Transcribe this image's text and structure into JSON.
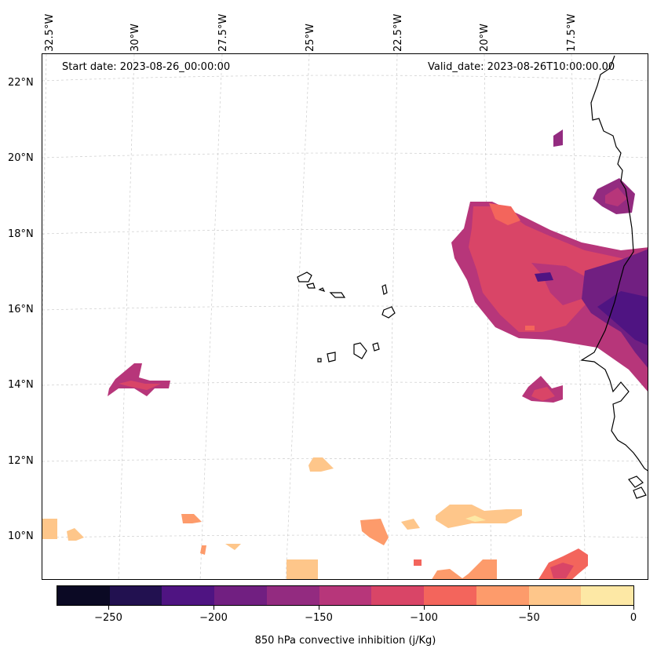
{
  "map": {
    "start_date": "Start date: 2023-08-26_00:00:00",
    "valid_date": "Valid_date: 2023-08-26T10:00:00.00",
    "lon_labels": [
      "32.5°W",
      "30°W",
      "27.5°W",
      "25°W",
      "22.5°W",
      "20°W",
      "17.5°W"
    ],
    "lat_labels": [
      "22°N",
      "20°N",
      "18°N",
      "16°N",
      "14°N",
      "12°N",
      "10°N"
    ],
    "field_color_scale": [
      "#0b0924",
      "#221150",
      "#4f1482",
      "#711f81",
      "#932b80",
      "#b7367a",
      "#d94567",
      "#f3655c",
      "#fd9b6b",
      "#fec68a",
      "#fde8a5"
    ]
  },
  "colorbar": {
    "title": "850 hPa convective inhibition (j/Kg)",
    "tick_labels": [
      "−250",
      "−200",
      "−150",
      "−100",
      "−50",
      "0"
    ],
    "levels": [
      -275,
      -250,
      -225,
      -200,
      -175,
      -150,
      -125,
      -100,
      -75,
      -50,
      -25,
      0
    ]
  }
}
